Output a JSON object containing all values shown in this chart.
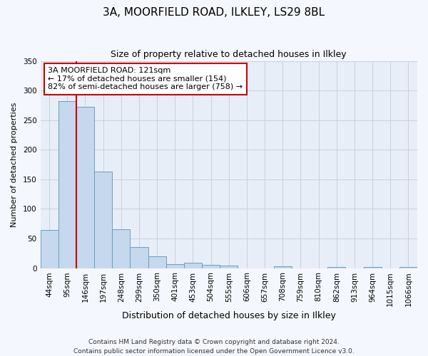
{
  "title": "3A, MOORFIELD ROAD, ILKLEY, LS29 8BL",
  "subtitle": "Size of property relative to detached houses in Ilkley",
  "xlabel": "Distribution of detached houses by size in Ilkley",
  "ylabel": "Number of detached properties",
  "bar_labels": [
    "44sqm",
    "95sqm",
    "146sqm",
    "197sqm",
    "248sqm",
    "299sqm",
    "350sqm",
    "401sqm",
    "453sqm",
    "504sqm",
    "555sqm",
    "606sqm",
    "657sqm",
    "708sqm",
    "759sqm",
    "810sqm",
    "862sqm",
    "913sqm",
    "964sqm",
    "1015sqm",
    "1066sqm"
  ],
  "bar_values": [
    65,
    282,
    272,
    163,
    66,
    35,
    20,
    7,
    9,
    5,
    4,
    0,
    0,
    3,
    0,
    0,
    2,
    0,
    2,
    0,
    2
  ],
  "bar_color": "#c5d8ed",
  "bar_edge_color": "#6a9fbf",
  "vline_color": "#cc0000",
  "ylim": [
    0,
    350
  ],
  "yticks": [
    0,
    50,
    100,
    150,
    200,
    250,
    300,
    350
  ],
  "annotation_text": "3A MOORFIELD ROAD: 121sqm\n← 17% of detached houses are smaller (154)\n82% of semi-detached houses are larger (758) →",
  "annotation_box_edgecolor": "#cc0000",
  "annotation_box_facecolor": "#ffffff",
  "footer_text": "Contains HM Land Registry data © Crown copyright and database right 2024.\nContains public sector information licensed under the Open Government Licence v3.0.",
  "plot_bg_color": "#e8eef8",
  "fig_bg_color": "#f5f7ff",
  "grid_color": "#c8d0e0",
  "title_fontsize": 11,
  "subtitle_fontsize": 9,
  "xlabel_fontsize": 9,
  "ylabel_fontsize": 8,
  "tick_fontsize": 7.5,
  "annotation_fontsize": 8,
  "footer_fontsize": 6.5
}
